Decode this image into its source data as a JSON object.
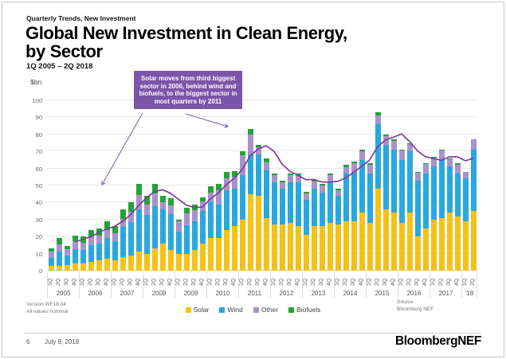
{
  "slide": {
    "eyebrow": "Quarterly Trends, New Investment",
    "title": "Global New Investment in Clean Energy, by Sector",
    "subtitle": "1Q 2005 – 2Q 2018",
    "unit_label": "$bn",
    "annotation": "Solar moves from third biggest sector in 2006, behind wind and biofuels, to the biggest sector in most quarters by 2011",
    "version_note": [
      "Version WF18.04",
      "All values nominal"
    ],
    "source_note": [
      "Source:",
      "Bloomberg NEF"
    ],
    "footer": {
      "page": "6",
      "date": "July 9, 2018",
      "brand": "BloombergNEF"
    }
  },
  "colors": {
    "solar": "#f5c216",
    "wind": "#29a8df",
    "other": "#a992c9",
    "biofuels": "#22a437",
    "trend_line": "#7d3f98",
    "annotation_bg": "#7a55a8"
  },
  "chart_data": {
    "type": "bar",
    "stacked": true,
    "title": "Global New Investment in Clean Energy, by Sector",
    "ylabel": "$bn",
    "ylim": [
      0,
      100
    ],
    "ytick_step": 10,
    "grid": true,
    "legend_position": "bottom",
    "quarter_labels": [
      "1Q",
      "2Q",
      "3Q",
      "4Q"
    ],
    "years": [
      {
        "label": "2005",
        "quarters": 4
      },
      {
        "label": "2006",
        "quarters": 4
      },
      {
        "label": "2007",
        "quarters": 4
      },
      {
        "label": "2008",
        "quarters": 4
      },
      {
        "label": "2009",
        "quarters": 4
      },
      {
        "label": "2010",
        "quarters": 4
      },
      {
        "label": "2011",
        "quarters": 4
      },
      {
        "label": "2012",
        "quarters": 4
      },
      {
        "label": "2013",
        "quarters": 4
      },
      {
        "label": "2014",
        "quarters": 4
      },
      {
        "label": "2015",
        "quarters": 4
      },
      {
        "label": "2016",
        "quarters": 4
      },
      {
        "label": "2017",
        "quarters": 4
      },
      {
        "label": "'18",
        "quarters": 2
      }
    ],
    "series": [
      {
        "name": "Solar",
        "color": "#f5c216",
        "values": [
          3,
          3,
          3.5,
          4,
          4,
          5,
          6,
          7,
          6,
          8,
          9,
          11,
          10,
          13,
          16,
          12,
          10,
          10,
          12,
          16,
          19,
          19,
          24,
          26,
          30,
          45,
          44,
          31,
          27,
          27,
          28,
          26,
          21,
          26,
          26,
          28,
          27,
          29,
          29,
          34,
          28,
          48,
          36,
          34,
          28,
          34,
          20,
          25,
          30,
          31,
          34,
          32,
          29,
          35
        ]
      },
      {
        "name": "Wind",
        "color": "#29a8df",
        "values": [
          4.5,
          8,
          5.5,
          8.5,
          8,
          10,
          10,
          12,
          11.5,
          17.5,
          19.5,
          25,
          22.5,
          25,
          20,
          21,
          13,
          16.5,
          17,
          19,
          21,
          20,
          23,
          22,
          26,
          23,
          24,
          28,
          25,
          21,
          24,
          26,
          20.5,
          22,
          20,
          24,
          17,
          28,
          29,
          31,
          29,
          38,
          38,
          37,
          37,
          36,
          33,
          32,
          31,
          34,
          27,
          25,
          25,
          36
        ]
      },
      {
        "name": "Other",
        "color": "#a992c9",
        "values": [
          3.5,
          4.5,
          3.5,
          5,
          4.5,
          5,
          4.5,
          5,
          4.5,
          5,
          6,
          8.5,
          6.5,
          7.5,
          4,
          5.5,
          6,
          7,
          6.5,
          5.5,
          6,
          8,
          7,
          7,
          12,
          12,
          4.5,
          4.5,
          4,
          4,
          4,
          4,
          4,
          4.5,
          4,
          4,
          3,
          4,
          5,
          5,
          5,
          5,
          5,
          5,
          5.5,
          4.5,
          4.5,
          5.5,
          5.5,
          5.5,
          4.5,
          5,
          4,
          6
        ]
      },
      {
        "name": "Biofuels",
        "color": "#22a437",
        "values": [
          2,
          3.5,
          2,
          3,
          3.5,
          4,
          4.5,
          5,
          4,
          5.5,
          5.5,
          6.5,
          5,
          5.5,
          4,
          4,
          1,
          3.5,
          3.5,
          2.5,
          3.5,
          4,
          4,
          3.5,
          2,
          3,
          1.5,
          2.5,
          1,
          1,
          1,
          1,
          1,
          1,
          1,
          1,
          1,
          1,
          1,
          1,
          1,
          2,
          1,
          1,
          0.5,
          0.5,
          0.5,
          0.5,
          0.5,
          0.5,
          0.5,
          1,
          0,
          0
        ]
      }
    ],
    "totals": [
      13,
      19,
      14.5,
      20.5,
      20,
      24,
      25,
      29,
      26,
      36,
      40,
      51,
      44,
      51,
      44,
      42.5,
      30,
      37,
      39,
      43,
      49.5,
      51,
      58,
      58.5,
      70,
      83,
      74,
      66,
      57,
      53,
      57,
      57,
      46.5,
      53.5,
      51,
      57,
      48,
      62,
      64,
      71,
      63,
      93,
      80,
      77,
      71,
      75,
      58,
      63,
      67,
      71,
      66,
      63,
      58,
      77
    ],
    "trend_line": {
      "name": "4-quarter average total",
      "color": "#7d3f98",
      "values": [
        null,
        null,
        null,
        16.8,
        18.5,
        19.8,
        22.4,
        24.5,
        26,
        29,
        32.8,
        38.3,
        42.8,
        46.5,
        47.5,
        45.4,
        41.9,
        38.4,
        37.1,
        37.3,
        42.1,
        45.6,
        50.4,
        54.3,
        59.4,
        67.4,
        71.4,
        73.3,
        70,
        62.5,
        58.3,
        56,
        53.4,
        53.5,
        52,
        52,
        52.4,
        54.5,
        57.8,
        61.3,
        65,
        72.8,
        76.8,
        78.3,
        80.3,
        75.8,
        70.3,
        66.8,
        65.8,
        64.8,
        66.8,
        66.8,
        64.5,
        66
      ]
    }
  }
}
